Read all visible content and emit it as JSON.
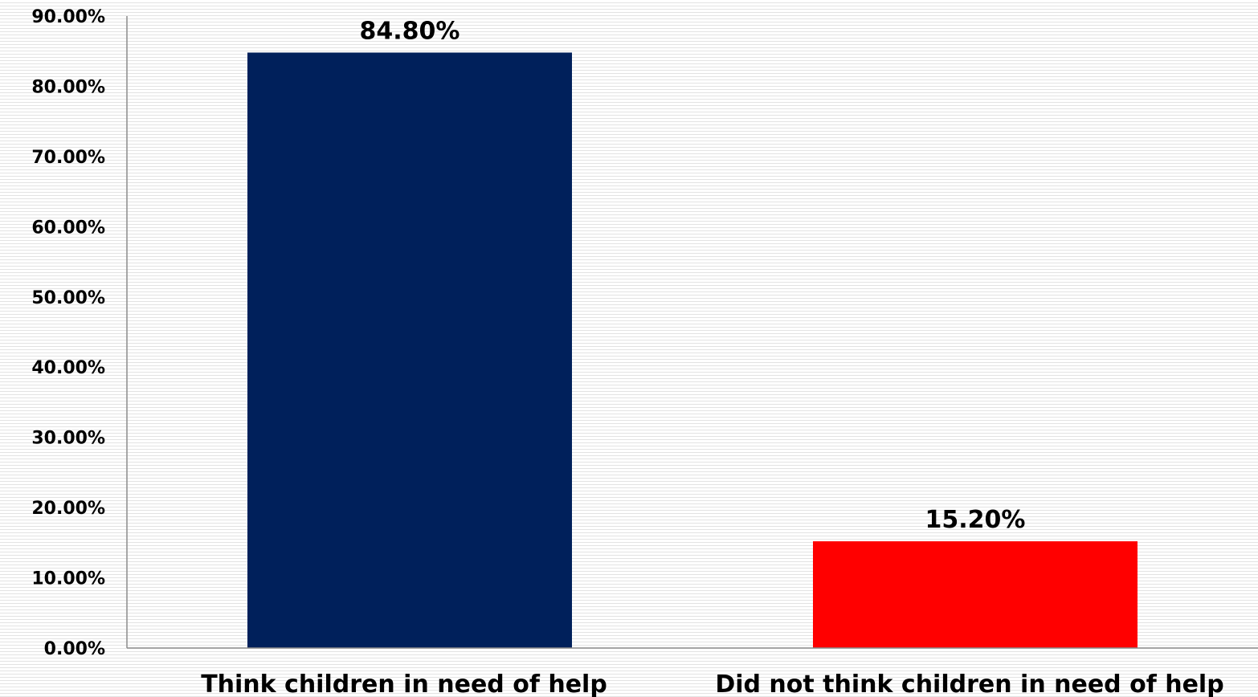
{
  "chart_data": {
    "type": "bar",
    "title": "",
    "xlabel": "",
    "ylabel": "",
    "categories": [
      "Think children in need of help",
      "Did not think children in need of help"
    ],
    "values": [
      84.8,
      15.2
    ],
    "data_labels": [
      "84.80%",
      "15.20%"
    ],
    "colors": [
      "#00205b",
      "#ff0000"
    ],
    "ylim": [
      0,
      90
    ],
    "yticks": [
      0,
      10,
      20,
      30,
      40,
      50,
      60,
      70,
      80,
      90
    ],
    "ytick_labels": [
      "0.00%",
      "10.00%",
      "20.00%",
      "30.00%",
      "40.00%",
      "50.00%",
      "60.00%",
      "70.00%",
      "80.00%",
      "90.00%"
    ],
    "grid": false,
    "legend": "none"
  }
}
